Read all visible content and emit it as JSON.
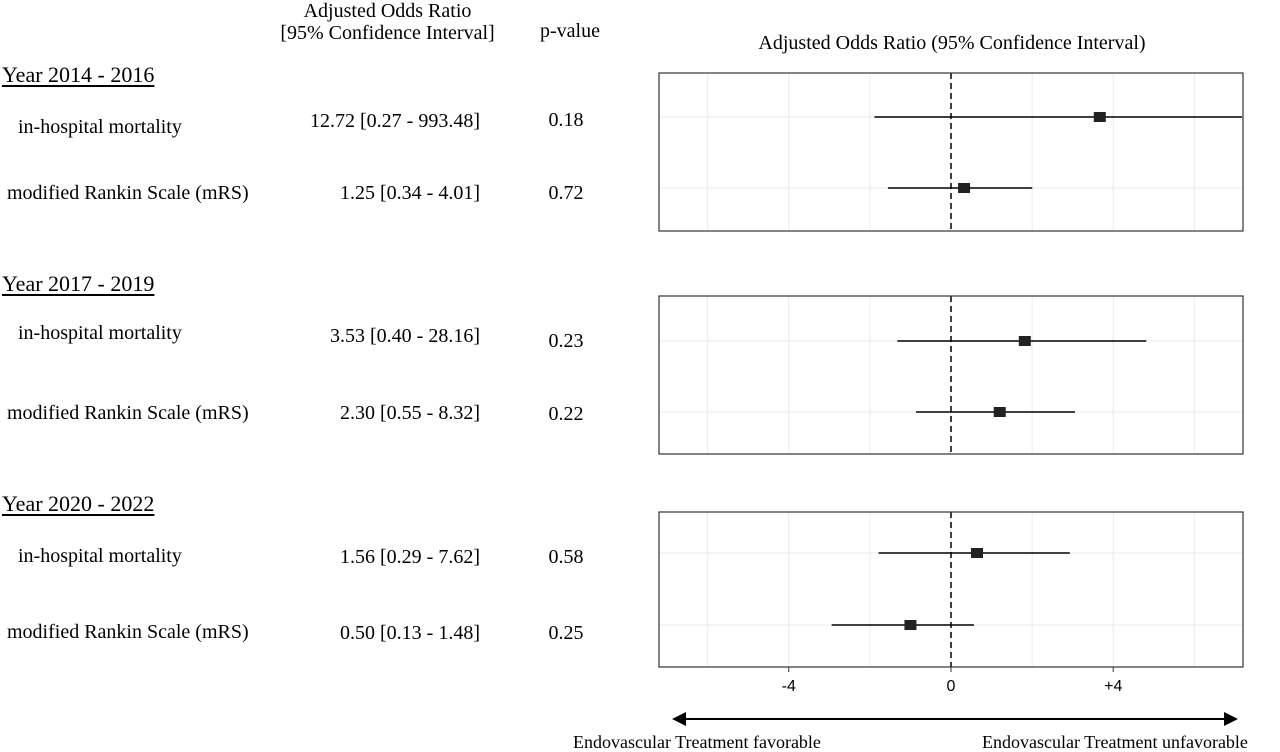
{
  "headers": {
    "aor_line1": "Adjusted Odds Ratio",
    "aor_line2": "[95% Confidence Interval]",
    "pvalue": "p-value",
    "plot_title": "Adjusted Odds Ratio (95% Confidence Interval)"
  },
  "groups": [
    {
      "title": "Year 2014 - 2016",
      "rows": [
        {
          "label": "in-hospital mortality",
          "aor": "12.72 [0.27 - 993.48]",
          "p": "0.18"
        },
        {
          "label": "modified Rankin Scale (mRS)",
          "aor": "1.25 [0.34 - 4.01]",
          "p": "0.72"
        }
      ]
    },
    {
      "title": "Year 2017 - 2019",
      "rows": [
        {
          "label": "in-hospital mortality",
          "aor": "3.53 [0.40 - 28.16]",
          "p": "0.23"
        },
        {
          "label": "modified Rankin Scale (mRS)",
          "aor": "2.30 [0.55 - 8.32]",
          "p": "0.22"
        }
      ]
    },
    {
      "title": "Year 2020 - 2022",
      "rows": [
        {
          "label": "in-hospital mortality",
          "aor": "1.56 [0.29 - 7.62]",
          "p": "0.58"
        },
        {
          "label": "modified Rankin Scale (mRS)",
          "aor": "0.50 [0.13 - 1.48]",
          "p": "0.25"
        }
      ]
    }
  ],
  "footer": {
    "left_label": "Endovascular Treatment favorable",
    "right_label": "Endovascular Treatment unfavorable"
  },
  "chart_data": {
    "type": "scatter",
    "title": "Adjusted Odds Ratio (95% Confidence Interval)",
    "x_scale": "log2",
    "xlim": [
      -7.2,
      7.2
    ],
    "x_ticks": [
      -4,
      0,
      4
    ],
    "x_tick_labels": [
      "-4",
      "0",
      "+4"
    ],
    "reference_line": 0,
    "grid": true,
    "panels": [
      {
        "name": "Year 2014 - 2016",
        "points": [
          {
            "label": "in-hospital mortality",
            "or": 12.72,
            "lo": 0.27,
            "hi": 993.48
          },
          {
            "label": "modified Rankin Scale (mRS)",
            "or": 1.25,
            "lo": 0.34,
            "hi": 4.01
          }
        ]
      },
      {
        "name": "Year 2017 - 2019",
        "points": [
          {
            "label": "in-hospital mortality",
            "or": 3.53,
            "lo": 0.4,
            "hi": 28.16
          },
          {
            "label": "modified Rankin Scale (mRS)",
            "or": 2.3,
            "lo": 0.55,
            "hi": 8.32
          }
        ]
      },
      {
        "name": "Year 2020 - 2022",
        "points": [
          {
            "label": "in-hospital mortality",
            "or": 1.56,
            "lo": 0.29,
            "hi": 7.62
          },
          {
            "label": "modified Rankin Scale (mRS)",
            "or": 0.5,
            "lo": 0.13,
            "hi": 1.48
          }
        ]
      }
    ]
  }
}
